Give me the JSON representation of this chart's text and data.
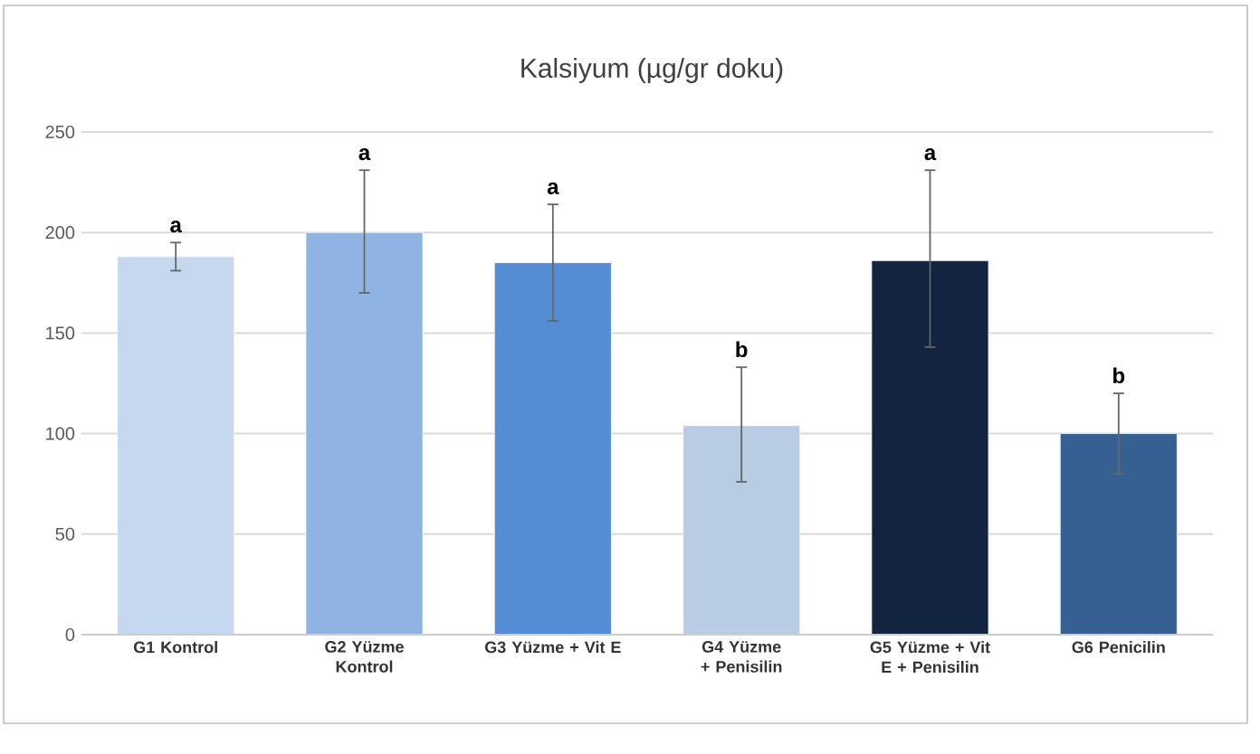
{
  "chart_data": {
    "type": "bar",
    "title": "Kalsiyum (µg/gr doku)",
    "categories": [
      "G1 Kontrol",
      "G2 Yüzme Kontrol",
      "G3 Yüzme + Vit E",
      "G4 Yüzme + Penisilin",
      "G5 Yüzme + Vit E + Penisilin",
      "G6 Penicilin"
    ],
    "values": [
      188,
      200,
      185,
      104,
      186,
      100
    ],
    "colors": [
      "#c5d8f0",
      "#8fb3e2",
      "#548dd4",
      "#b8cce4",
      "#12243f",
      "#366092"
    ],
    "errors": [
      [
        181,
        195
      ],
      [
        170,
        231
      ],
      [
        156,
        214
      ],
      [
        76,
        133
      ],
      [
        143,
        231
      ],
      [
        80,
        120
      ]
    ],
    "ylim": [
      0,
      250
    ],
    "yticks": [
      0,
      50,
      100,
      150,
      200,
      250
    ],
    "grid": "y",
    "annotations": [
      {
        "text": "a",
        "x": "G1 Kontrol",
        "y": 195
      },
      {
        "text": "a",
        "x": "G2 Yüzme Kontrol",
        "y": 231
      },
      {
        "text": "a",
        "x": "G3 Yüzme + Vit E",
        "y": 214
      },
      {
        "text": "b",
        "x": "G4 Yüzme + Penisilin",
        "y": 133
      },
      {
        "text": "a",
        "x": "G5 Yüzme + Vit E + Penisilin",
        "y": 231
      },
      {
        "text": "b",
        "x": "G6 Penicilin",
        "y": 120
      }
    ]
  }
}
